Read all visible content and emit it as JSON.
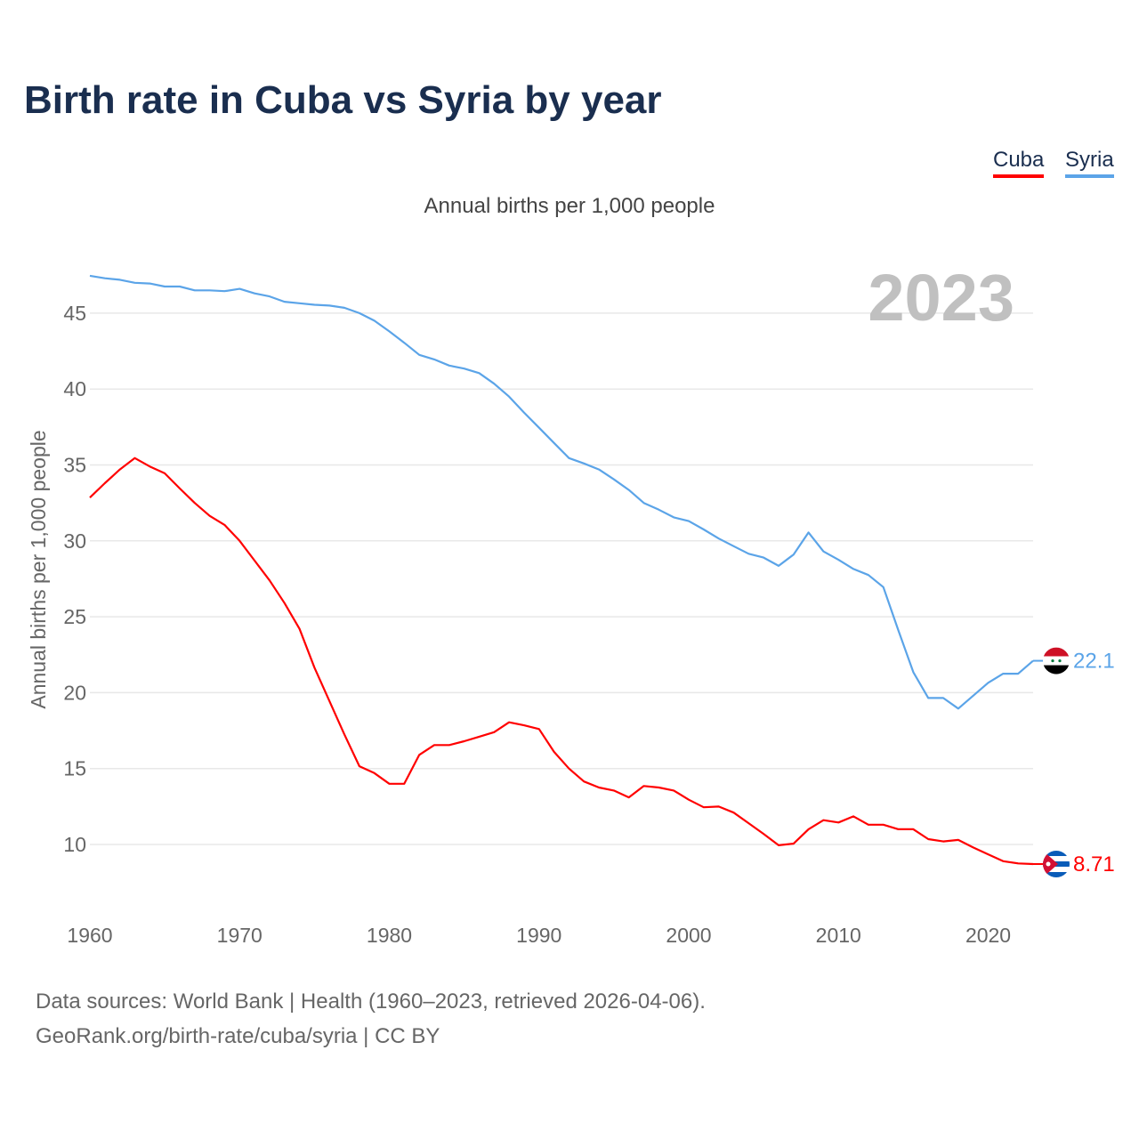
{
  "title": "Birth rate in Cuba vs Syria by year",
  "legend": [
    "Cuba",
    "Syria"
  ],
  "source_line1": "Data sources: World Bank | Health (1960–2023, retrieved 2026-04-06).",
  "source_line2": "GeoRank.org/birth-rate/cuba/syria | CC BY",
  "colors": {
    "Cuba": "#ff0000",
    "Syria": "#5ba4e8"
  },
  "chart_data": {
    "type": "line",
    "title": "Birth rate in Cuba vs Syria by year",
    "subtitle": "Annual births per 1,000 people",
    "xlabel": "",
    "ylabel": "Annual births per 1,000 people",
    "year_label": "2023",
    "xlim": [
      1960,
      2023
    ],
    "ylim": [
      6,
      48
    ],
    "xticks": [
      1960,
      1970,
      1980,
      1990,
      2000,
      2010,
      2020
    ],
    "yticks": [
      10,
      15,
      20,
      25,
      30,
      35,
      40,
      45
    ],
    "grid": true,
    "legend_position": "top-right",
    "x": [
      1960,
      1961,
      1962,
      1963,
      1964,
      1965,
      1966,
      1967,
      1968,
      1969,
      1970,
      1971,
      1972,
      1973,
      1974,
      1975,
      1976,
      1977,
      1978,
      1979,
      1980,
      1981,
      1982,
      1983,
      1984,
      1985,
      1986,
      1987,
      1988,
      1989,
      1990,
      1991,
      1992,
      1993,
      1994,
      1995,
      1996,
      1997,
      1998,
      1999,
      2000,
      2001,
      2002,
      2003,
      2004,
      2005,
      2006,
      2007,
      2008,
      2009,
      2010,
      2011,
      2012,
      2013,
      2014,
      2015,
      2016,
      2017,
      2018,
      2019,
      2020,
      2021,
      2022,
      2023
    ],
    "series": [
      {
        "name": "Cuba",
        "end_label": "8.71",
        "values": [
          32.85,
          33.8,
          34.7,
          35.45,
          34.9,
          34.45,
          33.45,
          32.5,
          31.65,
          31.05,
          30.0,
          28.7,
          27.4,
          25.9,
          24.2,
          21.65,
          19.45,
          17.25,
          15.15,
          14.7,
          14.0,
          14.0,
          15.9,
          16.55,
          16.55,
          16.8,
          17.1,
          17.4,
          18.05,
          17.85,
          17.6,
          16.1,
          15.0,
          14.15,
          13.75,
          13.55,
          13.1,
          13.85,
          13.75,
          13.55,
          12.95,
          12.45,
          12.5,
          12.1,
          11.4,
          10.7,
          9.95,
          10.05,
          11.0,
          11.6,
          11.45,
          11.85,
          11.3,
          11.3,
          11.0,
          11.0,
          10.35,
          10.2,
          10.3,
          9.8,
          9.35,
          8.9,
          8.75,
          8.71
        ]
      },
      {
        "name": "Syria",
        "end_label": "22.1",
        "values": [
          47.46,
          47.3,
          47.2,
          47.0,
          46.95,
          46.75,
          46.75,
          46.5,
          46.5,
          46.45,
          46.6,
          46.3,
          46.1,
          45.75,
          45.65,
          45.55,
          45.5,
          45.35,
          45.0,
          44.5,
          43.8,
          43.05,
          42.25,
          41.95,
          41.55,
          41.35,
          41.05,
          40.35,
          39.5,
          38.45,
          37.45,
          36.45,
          35.45,
          35.1,
          34.7,
          34.05,
          33.35,
          32.5,
          32.05,
          31.55,
          31.3,
          30.75,
          30.15,
          29.65,
          29.15,
          28.9,
          28.35,
          29.1,
          30.55,
          29.3,
          28.75,
          28.15,
          27.75,
          26.95,
          24.1,
          21.35,
          19.65,
          19.65,
          18.95,
          19.8,
          20.65,
          21.25,
          21.25,
          22.1
        ]
      }
    ]
  }
}
